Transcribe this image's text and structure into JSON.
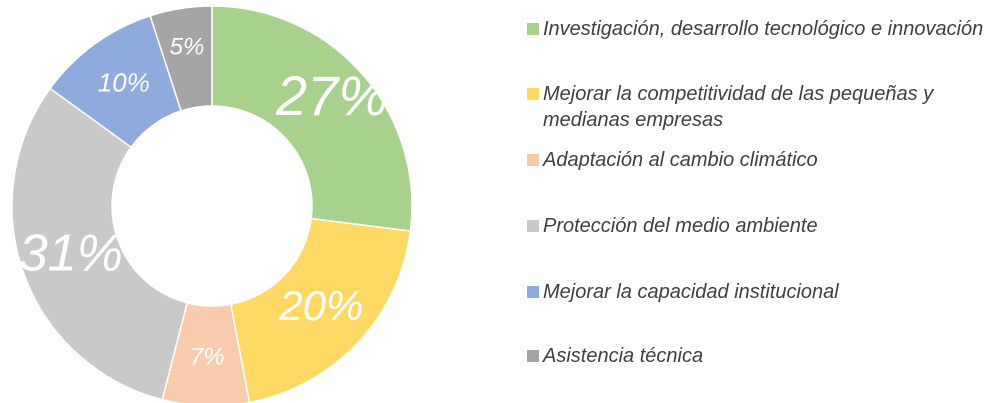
{
  "chart_data": {
    "type": "donut",
    "categories": [
      "Investigación, desarrollo tecnológico e innovación",
      "Mejorar la competitividad de las pequeñas y medianas empresas",
      "Adaptación al cambio climático",
      "Protección del medio ambiente",
      "Mejorar la capacidad institucional",
      "Asistencia técnica"
    ],
    "values": [
      27,
      20,
      7,
      31,
      10,
      5
    ],
    "value_labels": [
      "27%",
      "20%",
      "7%",
      "31%",
      "10%",
      "5%"
    ],
    "colors": [
      "#a9d18e",
      "#ffd966",
      "#f8cbad",
      "#c9c9c9",
      "#8faadc",
      "#a5a5a5"
    ],
    "legend": "right"
  }
}
